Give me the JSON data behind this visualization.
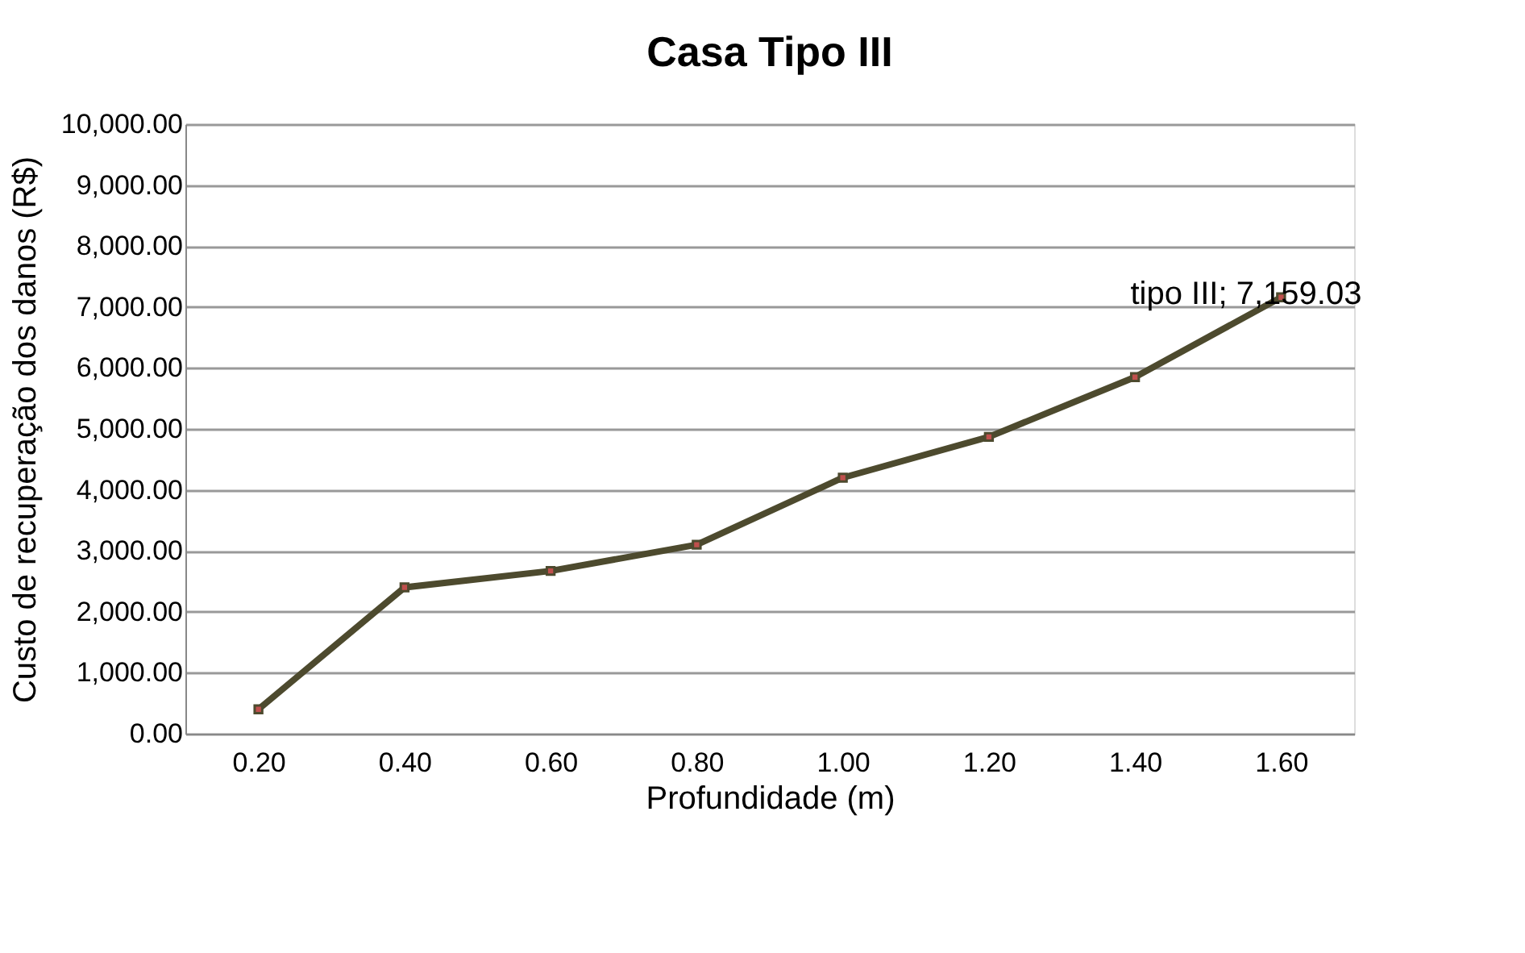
{
  "chart_data": {
    "type": "line",
    "title": "Casa Tipo III",
    "xlabel": "Profundidade (m)",
    "ylabel": "Custo de recuperação dos danos  (R$)",
    "categories": [
      "0.20",
      "0.40",
      "0.60",
      "0.80",
      "1.00",
      "1.20",
      "1.40",
      "1.60"
    ],
    "series": [
      {
        "color": "#4d4a2e",
        "values": [
          400,
          2400,
          2670,
          3100,
          4200,
          4870,
          5850,
          7159.03
        ],
        "value_labels": [
          null,
          null,
          null,
          null,
          null,
          null,
          null,
          "tipo III; 7,159.03"
        ]
      }
    ],
    "ylim": [
      0,
      10000
    ],
    "yticks": [
      {
        "value": 0,
        "label": "0.00"
      },
      {
        "value": 1000,
        "label": "1,000.00"
      },
      {
        "value": 2000,
        "label": "2,000.00"
      },
      {
        "value": 3000,
        "label": "3,000.00"
      },
      {
        "value": 4000,
        "label": "4,000.00"
      },
      {
        "value": 5000,
        "label": "5,000.00"
      },
      {
        "value": 6000,
        "label": "6,000.00"
      },
      {
        "value": 7000,
        "label": "7,000.00"
      },
      {
        "value": 8000,
        "label": "8,000.00"
      },
      {
        "value": 9000,
        "label": "9,000.00"
      },
      {
        "value": 10000,
        "label": "10,000.00"
      }
    ],
    "grid": "y",
    "marker": "square",
    "line_style": "solid"
  }
}
